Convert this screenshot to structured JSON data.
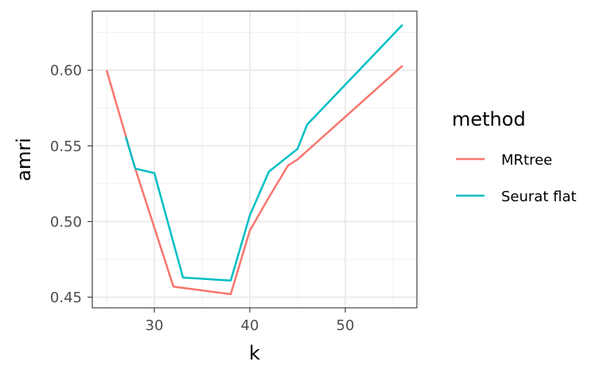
{
  "chart_data": {
    "type": "line",
    "xlabel": "k",
    "ylabel": "amri",
    "xlim": [
      23.5,
      57.5
    ],
    "ylim": [
      0.443,
      0.639
    ],
    "x_ticks": [
      30,
      40,
      50
    ],
    "x_tick_labels": [
      "30",
      "40",
      "50"
    ],
    "y_ticks": [
      0.45,
      0.5,
      0.55,
      0.6
    ],
    "y_tick_labels": [
      "0.45",
      "0.50",
      "0.55",
      "0.60"
    ],
    "grid": true,
    "legend": {
      "title": "method",
      "position": "right"
    },
    "series": [
      {
        "name": "MRtree",
        "color": "#F8766D",
        "points": [
          [
            25,
            0.6
          ],
          [
            28,
            0.535
          ],
          [
            32,
            0.457
          ],
          [
            38,
            0.452
          ],
          [
            40,
            0.494
          ],
          [
            42,
            0.516
          ],
          [
            44,
            0.537
          ],
          [
            45,
            0.541
          ],
          [
            56,
            0.603
          ]
        ]
      },
      {
        "name": "Seurat flat",
        "color": "#00BFC4",
        "points": [
          [
            27,
            0.556
          ],
          [
            28,
            0.535
          ],
          [
            30,
            0.532
          ],
          [
            33,
            0.463
          ],
          [
            38,
            0.461
          ],
          [
            40,
            0.504
          ],
          [
            42,
            0.533
          ],
          [
            45,
            0.548
          ],
          [
            46,
            0.564
          ],
          [
            56,
            0.63
          ]
        ]
      }
    ]
  }
}
